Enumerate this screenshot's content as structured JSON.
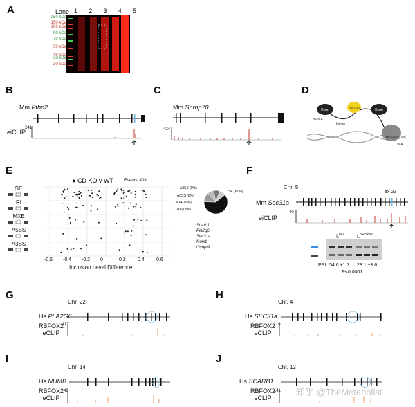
{
  "panels": {
    "A": "A",
    "B": "B",
    "C": "C",
    "D": "D",
    "E": "E",
    "F": "F",
    "G": "G",
    "H": "H",
    "I": "I",
    "J": "J"
  },
  "gel": {
    "lane_title": "Lane",
    "lanes": [
      "1",
      "2",
      "3",
      "4",
      "5"
    ],
    "markers": [
      {
        "label": "250 kDa",
        "color": "#2e8b3d"
      },
      {
        "label": "150 kDa",
        "color": "#c0392b"
      },
      {
        "label": "100 kDa",
        "color": "#c0392b"
      },
      {
        "label": "90 kDa",
        "color": "#2e8b3d"
      },
      {
        "label": "70 kDa",
        "color": "#2e8b3d"
      },
      {
        "label": "50 kDa",
        "color": "#c0392b"
      },
      {
        "label": "40 kDa",
        "color": "#c0392b"
      },
      {
        "label": "38 kDa",
        "color": "#2e8b3d"
      },
      {
        "label": "30 kDa",
        "color": "#c0392b"
      }
    ]
  },
  "B": {
    "gene_prefix": "Mm",
    "gene": "Ptbp2",
    "track": "eiCLIP",
    "ymax": "241"
  },
  "C": {
    "gene_prefix": "Mm",
    "gene": "Snrnp70",
    "ymax": "424"
  },
  "D": {
    "exon_left": "Exon",
    "exon_right": "Exon",
    "mrna": "mRNA",
    "intron": "Intron",
    "rbfox2": "RBFOX2",
    "polymerase": "RNApolII",
    "dna": "DNA"
  },
  "E": {
    "legend": "CD KO v WT",
    "events": "Events: 408",
    "categories": [
      "SE",
      "RI",
      "MXE",
      "A5SS",
      "A3SS"
    ],
    "xlabel": "Inclusion Level Difference",
    "xticks": [
      "-0.6",
      "-0.4",
      "-0.2",
      "0",
      "0.2",
      "0.4",
      "0.6"
    ],
    "pie_labels": {
      "se": "SE (61%)",
      "a3ss": "A3SS (9%)",
      "a5ss": "A5SS (8%)",
      "mxe": "MXE (9%)",
      "ri": "RI (13%)"
    },
    "genes": [
      "Scarb1",
      "Pla2g6",
      "Sec31a",
      "Numb",
      "Osbpl9"
    ]
  },
  "F": {
    "chr": "Chr. 5",
    "gene_prefix": "Mm",
    "gene": "Sec31a",
    "track": "eiCLIP",
    "ymax": "40",
    "exon": "ex 23",
    "lane_wt": "L",
    "lane_wt_sup": "WT",
    "lane_ko": "L",
    "lane_ko_sup": "ΔRbfox2",
    "psi_label": "PSI",
    "psi_wt": "54.6 ±1.7",
    "psi_ko": "28.1 ±3.6",
    "pvalue": "P<0.0001"
  },
  "G": {
    "chr": "Chr. 22",
    "gene_prefix": "Hs",
    "gene": "PLA2G6",
    "track1": "RBFOX2",
    "track2": "eCLIP",
    "ymax": "117"
  },
  "H": {
    "chr": "Chr. 4",
    "gene_prefix": "Hs",
    "gene": "SEC31a",
    "track1": "RBFOX2",
    "track2": "eCLIP",
    "ymax": "116"
  },
  "I": {
    "chr": "Chr. 14",
    "gene_prefix": "Hs",
    "gene": "NUMB",
    "track1": "RBFOX2",
    "track2": "eCLIP",
    "ymax": "49"
  },
  "J": {
    "chr": "Chr. 12",
    "gene_prefix": "Hs",
    "gene": "SCARB1",
    "track1": "RBFOX2",
    "track2": "eCLIP",
    "ymax": "141"
  },
  "watermark": "知乎 @TheMetabolist"
}
